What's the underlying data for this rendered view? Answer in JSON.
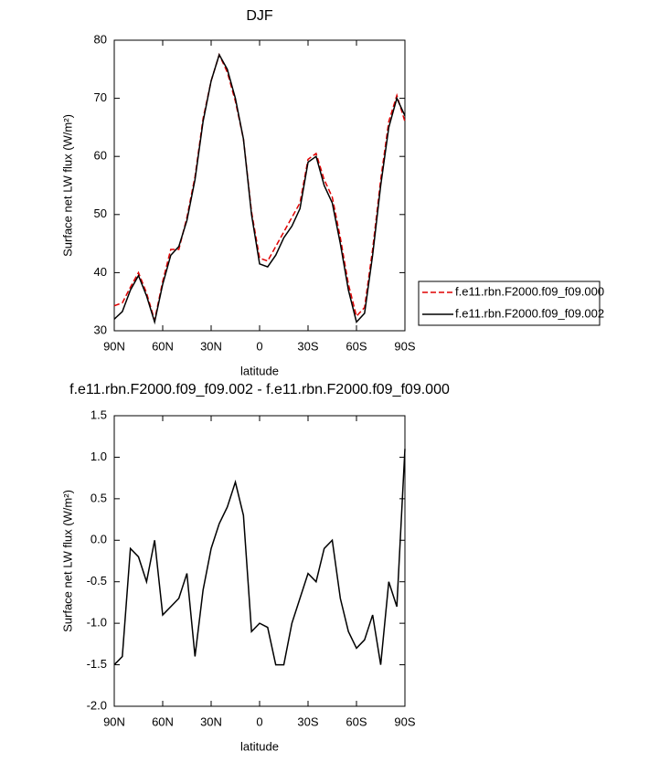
{
  "chart_data": [
    {
      "type": "line",
      "title": "DJF",
      "xlabel": "latitude",
      "ylabel": "Surface net LW flux (W/m²)",
      "x": [
        90,
        85,
        80,
        75,
        70,
        65,
        60,
        55,
        50,
        45,
        40,
        35,
        30,
        25,
        20,
        15,
        10,
        5,
        0,
        -5,
        -10,
        -15,
        -20,
        -25,
        -30,
        -35,
        -40,
        -45,
        -50,
        -55,
        -60,
        -65,
        -70,
        -75,
        -80,
        -85,
        -90
      ],
      "series": [
        {
          "name": "f.e11.rbn.F2000.f09_f09.000",
          "color": "#e00000",
          "dashed": true,
          "values": [
            34.3,
            34.8,
            37.5,
            40,
            36.5,
            31.8,
            38.5,
            44,
            44,
            49.5,
            56.5,
            66.5,
            73,
            77.5,
            74.5,
            69.5,
            63,
            50.5,
            42.5,
            42,
            44.5,
            47,
            49.5,
            52,
            59.5,
            60.5,
            56,
            53,
            46,
            38,
            32.5,
            34,
            44,
            56,
            66,
            70.5,
            66
          ]
        },
        {
          "name": "f.e11.rbn.F2000.f09_f09.002",
          "color": "#000000",
          "dashed": false,
          "values": [
            32,
            33.3,
            37,
            39.5,
            36,
            31.5,
            38,
            43,
            44.5,
            49,
            56,
            66,
            73,
            77.5,
            75,
            70,
            63,
            50,
            41.5,
            41,
            43,
            46,
            48,
            51,
            59,
            60,
            55,
            52,
            45,
            37,
            31.5,
            33,
            43,
            55,
            65,
            70,
            67
          ]
        }
      ],
      "xlim": [
        90,
        -90
      ],
      "xticks": [
        {
          "value": 90,
          "label": "90N"
        },
        {
          "value": 60,
          "label": "60N"
        },
        {
          "value": 30,
          "label": "30N"
        },
        0,
        {
          "value": -30,
          "label": "30S"
        },
        {
          "value": -60,
          "label": "60S"
        },
        {
          "value": -90,
          "label": "90S"
        }
      ],
      "ylim": [
        30,
        80
      ],
      "yticks": [
        30,
        40,
        50,
        60,
        70,
        80
      ],
      "legend": "right"
    },
    {
      "type": "line",
      "title": "f.e11.rbn.F2000.f09_f09.002 - f.e11.rbn.F2000.f09_f09.000",
      "xlabel": "latitude",
      "ylabel": "Surface net LW flux (W/m²)",
      "x": [
        90,
        85,
        80,
        75,
        70,
        65,
        60,
        55,
        50,
        45,
        40,
        35,
        30,
        25,
        20,
        15,
        10,
        5,
        0,
        -5,
        -10,
        -15,
        -20,
        -25,
        -30,
        -35,
        -40,
        -45,
        -50,
        -55,
        -60,
        -65,
        -70,
        -75,
        -80,
        -85,
        -90
      ],
      "series": [
        {
          "color": "#000000",
          "dashed": false,
          "values": [
            -1.5,
            -1.4,
            -0.1,
            -0.2,
            -0.5,
            0,
            -0.9,
            -0.8,
            -0.7,
            -0.4,
            -1.4,
            -0.6,
            -0.1,
            0.2,
            0.4,
            0.7,
            0.3,
            -1.1,
            -1,
            -1.05,
            -1.5,
            -1.5,
            -1,
            -0.7,
            -0.4,
            -0.5,
            -0.1,
            0,
            -0.7,
            -1.1,
            -1.3,
            -1.2,
            -0.9,
            -1.5,
            -0.5,
            -0.8,
            1.1
          ]
        }
      ],
      "xlim": [
        90,
        -90
      ],
      "xticks": [
        {
          "value": 90,
          "label": "90N"
        },
        {
          "value": 60,
          "label": "60N"
        },
        {
          "value": 30,
          "label": "30N"
        },
        0,
        {
          "value": -30,
          "label": "30S"
        },
        {
          "value": -60,
          "label": "60S"
        },
        {
          "value": -90,
          "label": "90S"
        }
      ],
      "ylim": [
        -2,
        1.5
      ],
      "yticks": [
        {
          "value": -2,
          "label": "-2.0"
        },
        -1.5,
        {
          "value": -1,
          "label": "-1.0"
        },
        -0.5,
        {
          "value": 0,
          "label": "0.0"
        },
        0.5,
        {
          "value": 1,
          "label": "1.0"
        },
        1.5
      ]
    }
  ]
}
